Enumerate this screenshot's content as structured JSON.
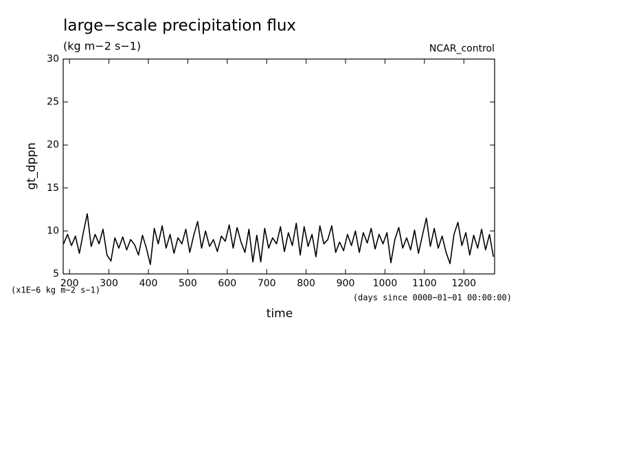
{
  "chart_data": {
    "type": "line",
    "title": "large−scale precipitation flux",
    "subtitle": "(kg m−2 s−1)",
    "annotation": "NCAR_control",
    "y_label": "gt_dppn",
    "x_label": "time",
    "y_units": "(x1E−6 kg m−2 s−1)",
    "x_units": "(days since 0000−01−01 00:00:00)",
    "xlim": [
      184,
      1278
    ],
    "xticks": [
      200,
      300,
      400,
      500,
      600,
      700,
      800,
      900,
      1000,
      1100,
      1200
    ],
    "ylim": [
      5,
      30
    ],
    "yticks": [
      5,
      10,
      15,
      20,
      25,
      30
    ],
    "grid": false,
    "series": [
      {
        "color": "#000000",
        "x": [
          185,
          195,
          205,
          215,
          225,
          235,
          245,
          255,
          265,
          275,
          285,
          295,
          305,
          315,
          325,
          335,
          345,
          355,
          365,
          375,
          385,
          395,
          405,
          415,
          425,
          435,
          445,
          455,
          465,
          475,
          485,
          495,
          505,
          515,
          525,
          535,
          545,
          555,
          565,
          575,
          585,
          595,
          605,
          615,
          625,
          635,
          645,
          655,
          665,
          675,
          685,
          695,
          705,
          715,
          725,
          735,
          745,
          755,
          765,
          775,
          785,
          795,
          805,
          815,
          825,
          835,
          845,
          855,
          865,
          875,
          885,
          895,
          905,
          915,
          925,
          935,
          945,
          955,
          965,
          975,
          985,
          995,
          1005,
          1015,
          1025,
          1035,
          1045,
          1055,
          1065,
          1075,
          1085,
          1095,
          1105,
          1115,
          1125,
          1135,
          1145,
          1155,
          1165,
          1175,
          1185,
          1195,
          1205,
          1215,
          1225,
          1235,
          1245,
          1255,
          1265,
          1275
        ],
        "values": [
          8.5,
          9.6,
          8.3,
          9.4,
          7.4,
          9.8,
          12.0,
          8.2,
          9.6,
          8.5,
          10.2,
          7.2,
          6.5,
          9.2,
          8.0,
          9.3,
          7.8,
          9.0,
          8.4,
          7.2,
          9.5,
          8.0,
          6.1,
          10.3,
          8.5,
          10.6,
          8.0,
          9.6,
          7.4,
          9.2,
          8.5,
          10.2,
          7.5,
          9.5,
          11.1,
          8.0,
          10.0,
          8.2,
          9.0,
          7.6,
          9.4,
          8.8,
          10.7,
          8.0,
          10.4,
          8.7,
          7.5,
          10.2,
          6.4,
          9.5,
          6.4,
          10.3,
          8.0,
          9.2,
          8.5,
          10.5,
          7.6,
          9.8,
          8.3,
          10.9,
          7.2,
          10.5,
          8.2,
          9.6,
          7.0,
          10.6,
          8.5,
          9.0,
          10.6,
          7.5,
          8.7,
          7.7,
          9.6,
          8.3,
          10.0,
          7.5,
          9.8,
          8.6,
          10.3,
          7.9,
          9.6,
          8.5,
          9.8,
          6.3,
          9.0,
          10.4,
          8.0,
          9.2,
          7.8,
          10.1,
          7.4,
          9.5,
          11.5,
          8.2,
          10.3,
          8.0,
          9.4,
          7.5,
          6.2,
          9.6,
          11.0,
          8.3,
          9.8,
          7.2,
          9.5,
          8.0,
          10.2,
          7.8,
          9.6,
          7.0
        ]
      }
    ]
  }
}
